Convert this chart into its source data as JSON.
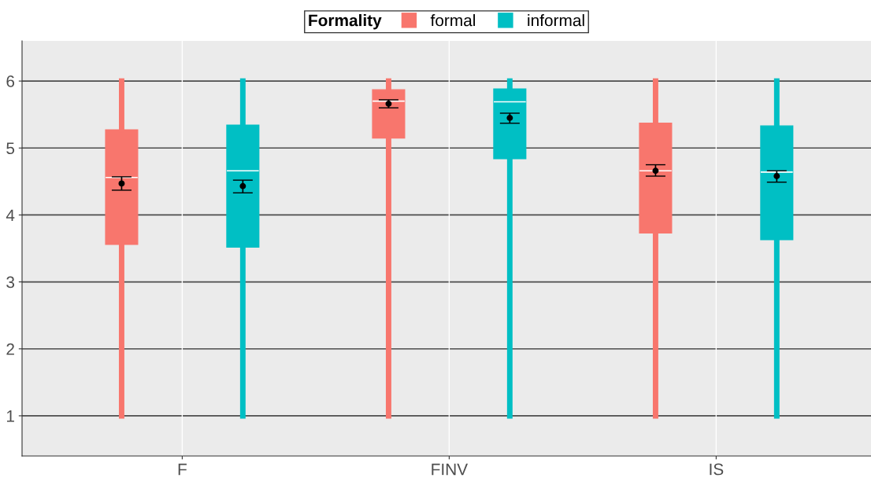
{
  "chart_data": {
    "type": "box",
    "categories": [
      "F",
      "FINV",
      "IS"
    ],
    "legend_title": "Formality",
    "legend": "top",
    "grid": true,
    "ylim": [
      0.4,
      6.6
    ],
    "yticks": [
      1,
      2,
      3,
      4,
      5,
      6
    ],
    "series": [
      {
        "name": "formal",
        "color": "#f8766d",
        "boxes": [
          {
            "low": 1,
            "q1": 3.56,
            "median": 4.56,
            "q3": 5.27,
            "high": 6
          },
          {
            "low": 1,
            "q1": 5.15,
            "median": 5.7,
            "q3": 5.87,
            "high": 6
          },
          {
            "low": 1,
            "q1": 3.73,
            "median": 4.66,
            "q3": 5.37,
            "high": 6
          }
        ]
      },
      {
        "name": "informal",
        "color": "#00bfc4",
        "boxes": [
          {
            "low": 1,
            "q1": 3.52,
            "median": 4.66,
            "q3": 5.34,
            "high": 6
          },
          {
            "low": 1,
            "q1": 4.84,
            "median": 5.69,
            "q3": 5.88,
            "high": 6
          },
          {
            "low": 1,
            "q1": 3.63,
            "median": 4.64,
            "q3": 5.33,
            "high": 6
          }
        ]
      },
      {
        "type": "scatter",
        "color": "#000000",
        "x": [
          "F",
          "FINV",
          "IS"
        ],
        "values": [
          4.47,
          5.66,
          4.66
        ],
        "errors": [
          [
            4.37,
            4.57
          ],
          [
            5.6,
            5.72
          ],
          [
            4.58,
            4.75
          ]
        ]
      },
      {
        "type": "scatter",
        "color": "#000000",
        "x": [
          "F",
          "FINV",
          "IS"
        ],
        "values": [
          4.43,
          5.45,
          4.58
        ],
        "errors": [
          [
            4.33,
            4.52
          ],
          [
            5.37,
            5.52
          ],
          [
            4.49,
            4.66
          ]
        ]
      }
    ]
  }
}
